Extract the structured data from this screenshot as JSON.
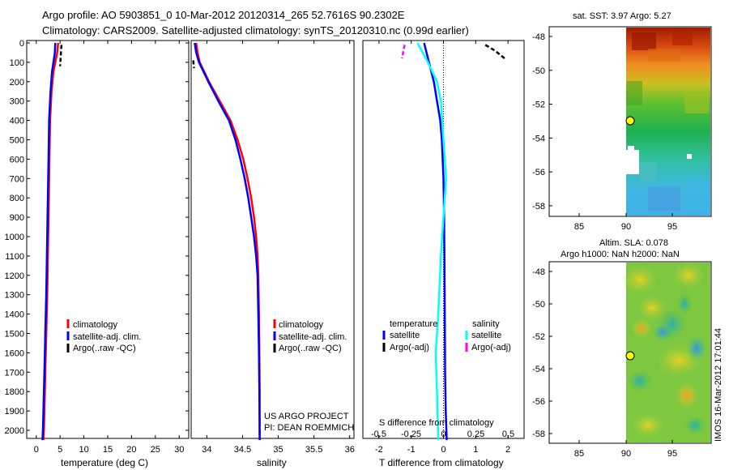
{
  "title": {
    "line1": "Argo profile: AO 5903851_0 10-Mar-2012 20120314_265 52.7616S 90.2302E",
    "line2": "Climatology: CARS2009. Satellite-adjusted climatology: synTS_20120310.nc (0.99d earlier)"
  },
  "depth_ticks": [
    0,
    100,
    200,
    300,
    400,
    500,
    600,
    700,
    800,
    900,
    1000,
    1100,
    1200,
    1300,
    1400,
    1500,
    1600,
    1700,
    1800,
    1900,
    2000
  ],
  "colors": {
    "climatology": "#ff0000",
    "satellite": "#0000ff",
    "argo": "#000000",
    "sal_satellite": "#00ffff",
    "sal_argo": "#ff00ff"
  },
  "panel1": {
    "xlabel": "temperature (deg C)",
    "xticks": [
      0,
      5,
      10,
      15,
      20,
      25,
      30
    ],
    "legend": [
      "climatology",
      "satellite-adj. clim.",
      "Argo(..raw -QC)"
    ]
  },
  "panel2": {
    "xlabel": "salinity",
    "xticks": [
      "34",
      "34.5",
      "35",
      "35.5",
      "36"
    ],
    "legend": [
      "climatology",
      "satellite-adj. clim.",
      "Argo(..raw -QC)"
    ],
    "footer1": "US ARGO PROJECT",
    "footer2": "PI: DEAN ROEMMICH"
  },
  "panel3": {
    "xlabel": "T difference from climatology",
    "xticks": [
      "-2",
      "-1",
      "0",
      "1",
      "2"
    ],
    "s_label": "S difference from climatology",
    "s_ticks": [
      "-0.5",
      "-0.25",
      "0",
      "0.25",
      "0.5"
    ],
    "legend_t_title": "temperature",
    "legend_s_title": "salinity",
    "legend_t": [
      "satellite",
      "Argo(-adj)"
    ],
    "legend_s": [
      "satellite",
      "Argo(-adj)"
    ]
  },
  "map1": {
    "title": "sat. SST: 3.97  Argo: 5.27",
    "yticks": [
      "-48",
      "-50",
      "-52",
      "-54",
      "-56",
      "-58"
    ],
    "xticks": [
      "85",
      "90",
      "95"
    ]
  },
  "map2": {
    "title1": "Altim. SLA: 0.078",
    "title2": "Argo h1000: NaN h2000: NaN",
    "yticks": [
      "-48",
      "-50",
      "-52",
      "-54",
      "-56",
      "-58"
    ],
    "xticks": [
      "85",
      "90",
      "95"
    ]
  },
  "side_text": "IMOS 16-Mar-2012 17:01:44",
  "chart_data": [
    {
      "type": "line",
      "name": "temperature profile",
      "xlabel": "temperature (deg C)",
      "ylabel": "depth",
      "xlim": [
        -2,
        32
      ],
      "ylim": [
        2050,
        0
      ],
      "series": [
        {
          "name": "climatology",
          "color": "#ff0000",
          "x": [
            4.6,
            4.4,
            3.6,
            3.2,
            2.9,
            2.8,
            2.7,
            2.6,
            2.5,
            2.4,
            2.3,
            2.2,
            2.1,
            2.0,
            1.9,
            1.8,
            1.7,
            1.6,
            1.5
          ],
          "y": [
            0,
            50,
            150,
            250,
            400,
            550,
            700,
            850,
            1000,
            1150,
            1300,
            1400,
            1500,
            1600,
            1700,
            1800,
            1900,
            2000,
            2050
          ]
        },
        {
          "name": "satellite-adj. clim.",
          "color": "#0000ff",
          "x": [
            4.0,
            3.9,
            3.3,
            3.0,
            2.7,
            2.6,
            2.5,
            2.4,
            2.3,
            2.2,
            2.1,
            2.0,
            1.9,
            1.8,
            1.7,
            1.6,
            1.5,
            1.4,
            1.3
          ],
          "y": [
            0,
            50,
            150,
            250,
            400,
            550,
            700,
            850,
            1000,
            1150,
            1300,
            1400,
            1500,
            1600,
            1700,
            1800,
            1900,
            2000,
            2050
          ]
        },
        {
          "name": "Argo(..raw -QC)",
          "color": "#000000",
          "x": [
            5.3,
            5.2,
            5.1,
            5.0
          ],
          "y": [
            10,
            40,
            80,
            120
          ]
        }
      ]
    },
    {
      "type": "line",
      "name": "salinity profile",
      "xlabel": "salinity",
      "ylabel": "depth",
      "xlim": [
        33.78,
        36.06
      ],
      "ylim": [
        2050,
        0
      ],
      "series": [
        {
          "name": "climatology",
          "color": "#ff0000",
          "x": [
            33.85,
            33.87,
            33.9,
            34.03,
            34.18,
            34.33,
            34.43,
            34.51,
            34.57,
            34.62,
            34.66,
            34.69,
            34.71,
            34.72,
            34.73,
            34.735,
            34.74,
            34.74
          ],
          "y": [
            0,
            50,
            100,
            200,
            300,
            400,
            500,
            600,
            700,
            800,
            900,
            1000,
            1100,
            1200,
            1400,
            1600,
            1800,
            2050
          ]
        },
        {
          "name": "satellite-adj. clim.",
          "color": "#0000ff",
          "x": [
            33.83,
            33.85,
            33.89,
            34.02,
            34.16,
            34.31,
            34.4,
            34.47,
            34.53,
            34.58,
            34.62,
            34.66,
            34.69,
            34.71,
            34.72,
            34.73,
            34.735,
            34.74
          ],
          "y": [
            0,
            50,
            100,
            200,
            300,
            400,
            500,
            600,
            700,
            800,
            900,
            1000,
            1100,
            1200,
            1400,
            1600,
            1800,
            2050
          ]
        },
        {
          "name": "Argo(..raw -QC)",
          "color": "#000000",
          "x": [
            33.81,
            33.82
          ],
          "y": [
            90,
            130
          ]
        }
      ]
    },
    {
      "type": "line",
      "name": "difference profile",
      "xlabel": "T difference from climatology",
      "s_axis": "S difference from climatology",
      "xlim": [
        -2.5,
        2.5
      ],
      "ylim": [
        2050,
        0
      ],
      "series": [
        {
          "name": "temperature satellite",
          "color": "#0000ff",
          "x": [
            -0.6,
            -0.45,
            -0.3,
            -0.2,
            -0.1,
            -0.05,
            0,
            0.02,
            0.03,
            0.04,
            0.05,
            0.07,
            0.1
          ],
          "y": [
            0,
            100,
            200,
            300,
            400,
            500,
            700,
            900,
            1100,
            1400,
            1700,
            1900,
            2050
          ]
        },
        {
          "name": "temperature Argo(-adj)",
          "color": "#000000",
          "x": [
            1.3,
            1.6,
            1.9
          ],
          "y": [
            10,
            40,
            80
          ]
        },
        {
          "name": "salinity satellite",
          "color": "#00ffff",
          "x": [
            -0.2,
            -0.12,
            -0.05,
            -0.02,
            0,
            0.02,
            0,
            -0.02,
            -0.04,
            -0.06,
            -0.05,
            -0.04
          ],
          "y": [
            0,
            100,
            200,
            300,
            500,
            700,
            900,
            1100,
            1400,
            1600,
            1800,
            2050
          ]
        },
        {
          "name": "salinity Argo(-adj)",
          "color": "#ff00ff",
          "x": [
            -0.3,
            -0.32
          ],
          "y": [
            10,
            80
          ]
        }
      ]
    },
    {
      "type": "heatmap",
      "name": "sat. SST map",
      "xticks": [
        85,
        90,
        95
      ],
      "yticks": [
        -48,
        -50,
        -52,
        -54,
        -56,
        -58
      ],
      "marker": {
        "lon": 90.23,
        "lat": -52.76
      }
    },
    {
      "type": "heatmap",
      "name": "Altim. SLA map",
      "xticks": [
        85,
        90,
        95
      ],
      "yticks": [
        -48,
        -50,
        -52,
        -54,
        -56,
        -58
      ],
      "marker": {
        "lon": 90.23,
        "lat": -52.76
      }
    }
  ]
}
